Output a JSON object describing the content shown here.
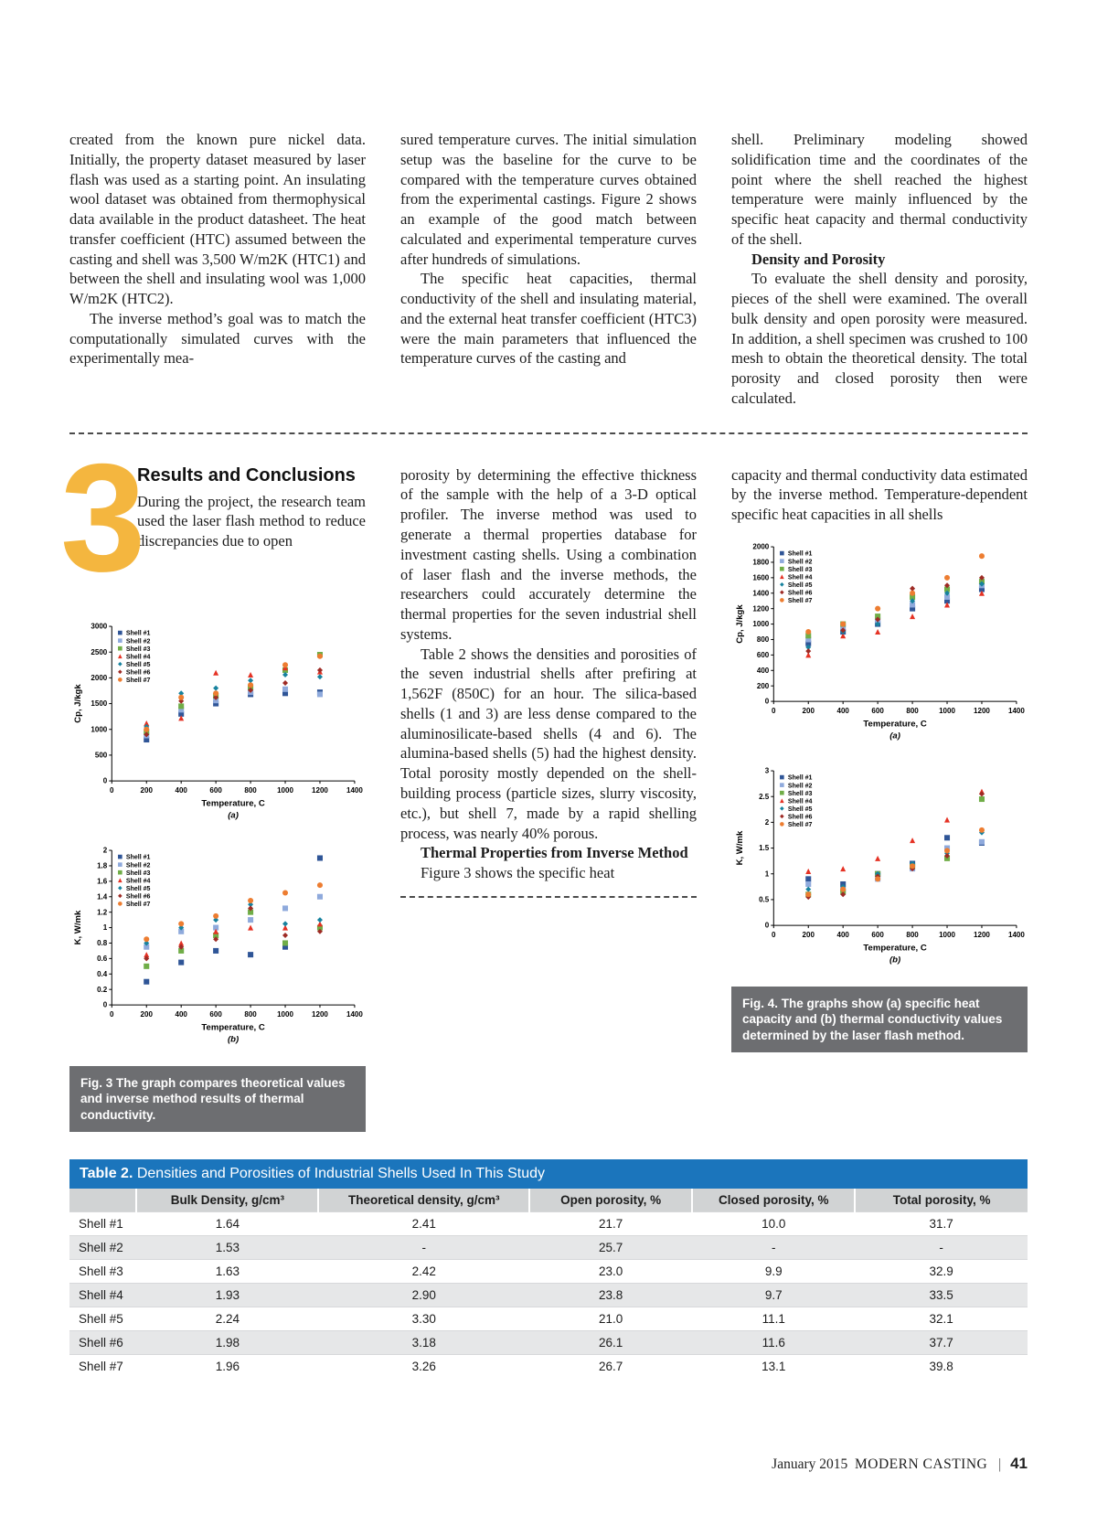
{
  "colors": {
    "table_header_bg": "#1b75bc",
    "caption_bg": "#6d6e71",
    "numeral_color": "#f4b63f"
  },
  "intro": {
    "col1_p1": "created from the known pure nickel data. Initially, the property dataset measured by laser flash was used as a starting point. An insulating wool dataset was obtained from thermophysical data available in the product datasheet. The heat transfer coefficient (HTC) assumed between the casting and shell was 3,500 W/m2K (HTC1) and between the shell and insulating wool was 1,000 W/m2K (HTC2).",
    "col1_p2": "The inverse method’s goal was to match the computationally simulated curves with the experimentally mea-",
    "col2_p1": "sured temperature curves. The initial simulation setup was the baseline for the curve to be compared with the temperature curves obtained from the experimental castings. Figure 2 shows an example of the good match between calculated and experimental temperature curves after hundreds of simulations.",
    "col2_p2": "The specific heat capacities, thermal conductivity of the shell and insulating material, and the external heat transfer coefficient (HTC3) were the main parameters that influenced the temperature curves of the casting and",
    "col3_p1": "shell. Preliminary modeling showed solidification time and the coordinates of the point where the shell reached the highest temperature were mainly influenced by the specific heat capacity and thermal conductivity of the shell.",
    "col3_head": "Density and Porosity",
    "col3_p2": "To evaluate the shell density and porosity, pieces of the shell were examined. The overall bulk density and open porosity were measured. In addition, a shell specimen was crushed to 100 mesh to obtain the theoretical density. The total porosity and closed porosity then were calculated."
  },
  "results": {
    "numeral": "3",
    "heading": "Results and Conclusions",
    "colA_p1": "During the project, the research team used the laser flash method to reduce discrepancies due to open",
    "colB_p1": "porosity by determining the effective thickness of the sample with the help of a 3-D optical profiler. The inverse method was used to generate a thermal properties database for investment casting shells. Using a combination of laser flash and the inverse methods, the researchers could accurately determine the thermal properties for the seven industrial shell systems.",
    "colB_p2": "Table 2 shows the densities and porosities of the seven industrial shells after prefiring at 1,562F (850C) for an hour. The silica-based shells (1 and 3) are less dense compared to the aluminosilicate-based shells (4 and 6). The alumina-based shells (5) had the highest density. Total porosity mostly depended on the shell-building process (particle sizes, slurry viscosity, etc.), but shell 7, made by a rapid shelling process, was nearly 40% porous.",
    "colB_subhead": "Thermal Properties from Inverse Method",
    "colB_p3": "Figure 3 shows the specific heat",
    "colC_p1": "capacity and thermal conductivity data estimated by the inverse method. Temperature-dependent specific heat capacities in all shells"
  },
  "captions": {
    "fig3": "Fig. 3 The graph compares theoretical values and inverse method results of thermal conductivity.",
    "fig4": "Fig. 4. The graphs show (a) specific heat capacity and (b) thermal conductivity values determined by the laser flash method."
  },
  "table": {
    "title_prefix": "Table 2.",
    "title_rest": " Densities and Porosities of Industrial Shells Used In This Study",
    "headers": [
      "",
      "Bulk Density, g/cm³",
      "Theoretical density, g/cm³",
      "Open porosity, %",
      "Closed porosity, %",
      "Total porosity, %"
    ],
    "rows": [
      [
        "Shell #1",
        "1.64",
        "2.41",
        "21.7",
        "10.0",
        "31.7"
      ],
      [
        "Shell #2",
        "1.53",
        "-",
        "25.7",
        "-",
        "-"
      ],
      [
        "Shell #3",
        "1.63",
        "2.42",
        "23.0",
        "9.9",
        "32.9"
      ],
      [
        "Shell #4",
        "1.93",
        "2.90",
        "23.8",
        "9.7",
        "33.5"
      ],
      [
        "Shell #5",
        "2.24",
        "3.30",
        "21.0",
        "11.1",
        "32.1"
      ],
      [
        "Shell #6",
        "1.98",
        "3.18",
        "26.1",
        "11.6",
        "37.7"
      ],
      [
        "Shell #7",
        "1.96",
        "3.26",
        "26.7",
        "13.1",
        "39.8"
      ]
    ]
  },
  "footer": {
    "issue": "January 2015",
    "magazine": "MODERN CASTING",
    "divider": "|",
    "page": "41"
  },
  "chart_data": [
    {
      "id": "fig3a",
      "type": "scatter",
      "xlabel": "Temperature, C",
      "ylabel": "Cp, J/kgk",
      "sublabel": "(a)",
      "xlim": [
        0,
        1400
      ],
      "ylim": [
        0,
        3000
      ],
      "xtick": 200,
      "ytick": 500,
      "grid": false,
      "legend_position": "top-left",
      "x": [
        200,
        400,
        600,
        800,
        1000,
        1200
      ],
      "series": [
        {
          "name": "Shell #1",
          "color": "#2f5597",
          "marker": "square",
          "values": [
            800,
            1300,
            1500,
            1680,
            1700,
            1720
          ]
        },
        {
          "name": "Shell #2",
          "color": "#8faadc",
          "marker": "square",
          "values": [
            880,
            1380,
            1560,
            1720,
            1780,
            1680
          ]
        },
        {
          "name": "Shell #3",
          "color": "#70ad47",
          "marker": "square",
          "values": [
            950,
            1450,
            1650,
            1820,
            2150,
            2450
          ]
        },
        {
          "name": "Shell #4",
          "color": "#e53224",
          "marker": "triangle",
          "values": [
            1120,
            1220,
            2100,
            2060,
            2200,
            2120
          ]
        },
        {
          "name": "Shell #5",
          "color": "#17829e",
          "marker": "diamond",
          "values": [
            1050,
            1700,
            1800,
            1950,
            2060,
            2020
          ]
        },
        {
          "name": "Shell #6",
          "color": "#9e2b25",
          "marker": "diamond",
          "values": [
            900,
            1550,
            1620,
            1760,
            1900,
            2150
          ]
        },
        {
          "name": "Shell #7",
          "color": "#ed7d31",
          "marker": "circle",
          "values": [
            1000,
            1620,
            1700,
            1860,
            2250,
            2420
          ]
        }
      ]
    },
    {
      "id": "fig3b",
      "type": "scatter",
      "xlabel": "Temperature, C",
      "ylabel": "K, W/mk",
      "sublabel": "(b)",
      "xlim": [
        0,
        1400
      ],
      "ylim": [
        0,
        2
      ],
      "xtick": 200,
      "ytick": 0.2,
      "grid": false,
      "legend_position": "top-left",
      "x": [
        200,
        400,
        600,
        800,
        1000,
        1200
      ],
      "series": [
        {
          "name": "Shell #1",
          "color": "#2f5597",
          "marker": "square",
          "values": [
            0.3,
            0.55,
            0.7,
            0.65,
            0.75,
            1.9
          ]
        },
        {
          "name": "Shell #2",
          "color": "#8faadc",
          "marker": "square",
          "values": [
            0.75,
            0.95,
            1.0,
            1.1,
            1.25,
            1.4
          ]
        },
        {
          "name": "Shell #3",
          "color": "#70ad47",
          "marker": "square",
          "values": [
            0.5,
            0.7,
            0.9,
            1.2,
            0.8,
            1.0
          ]
        },
        {
          "name": "Shell #4",
          "color": "#e53224",
          "marker": "triangle",
          "values": [
            0.65,
            0.8,
            0.95,
            1.0,
            1.0,
            1.05
          ]
        },
        {
          "name": "Shell #5",
          "color": "#17829e",
          "marker": "diamond",
          "values": [
            0.8,
            1.0,
            1.1,
            1.3,
            1.05,
            1.1
          ]
        },
        {
          "name": "Shell #6",
          "color": "#9e2b25",
          "marker": "diamond",
          "values": [
            0.6,
            0.75,
            0.85,
            1.25,
            0.9,
            0.95
          ]
        },
        {
          "name": "Shell #7",
          "color": "#ed7d31",
          "marker": "circle",
          "values": [
            0.85,
            1.05,
            1.15,
            1.35,
            1.45,
            1.55
          ]
        }
      ]
    },
    {
      "id": "fig4a",
      "type": "scatter",
      "xlabel": "Temperature, C",
      "ylabel": "Cp, J/kgk",
      "sublabel": "(a)",
      "xlim": [
        0,
        1400
      ],
      "ylim": [
        0,
        2000
      ],
      "xtick": 200,
      "ytick": 200,
      "grid": false,
      "legend_position": "top-left",
      "x": [
        200,
        400,
        600,
        800,
        1000,
        1200
      ],
      "series": [
        {
          "name": "Shell #1",
          "color": "#2f5597",
          "marker": "square",
          "values": [
            750,
            900,
            1000,
            1200,
            1300,
            1450
          ]
        },
        {
          "name": "Shell #2",
          "color": "#8faadc",
          "marker": "square",
          "values": [
            800,
            950,
            1050,
            1250,
            1350,
            1500
          ]
        },
        {
          "name": "Shell #3",
          "color": "#70ad47",
          "marker": "square",
          "values": [
            850,
            1000,
            1100,
            1350,
            1450,
            1550
          ]
        },
        {
          "name": "Shell #4",
          "color": "#e53224",
          "marker": "triangle",
          "values": [
            600,
            850,
            900,
            1100,
            1250,
            1400
          ]
        },
        {
          "name": "Shell #5",
          "color": "#17829e",
          "marker": "diamond",
          "values": [
            700,
            900,
            1000,
            1300,
            1400,
            1520
          ]
        },
        {
          "name": "Shell #6",
          "color": "#9e2b25",
          "marker": "diamond",
          "values": [
            650,
            920,
            1060,
            1460,
            1500,
            1600
          ]
        },
        {
          "name": "Shell #7",
          "color": "#ed7d31",
          "marker": "circle",
          "values": [
            900,
            1000,
            1200,
            1400,
            1600,
            1880
          ]
        }
      ]
    },
    {
      "id": "fig4b",
      "type": "scatter",
      "xlabel": "Temperature, C",
      "ylabel": "K, W/mk",
      "sublabel": "(b)",
      "xlim": [
        0,
        1400
      ],
      "ylim": [
        0,
        3
      ],
      "xtick": 200,
      "ytick": 0.5,
      "grid": false,
      "legend_position": "top-left",
      "x": [
        200,
        400,
        600,
        800,
        1000,
        1200
      ],
      "series": [
        {
          "name": "Shell #1",
          "color": "#2f5597",
          "marker": "square",
          "values": [
            0.9,
            0.8,
            1.0,
            1.2,
            1.7,
            1.6
          ]
        },
        {
          "name": "Shell #2",
          "color": "#8faadc",
          "marker": "square",
          "values": [
            0.8,
            0.7,
            0.9,
            1.1,
            1.5,
            1.62
          ]
        },
        {
          "name": "Shell #3",
          "color": "#70ad47",
          "marker": "square",
          "values": [
            0.6,
            0.65,
            1.0,
            1.15,
            1.3,
            2.45
          ]
        },
        {
          "name": "Shell #4",
          "color": "#e53224",
          "marker": "triangle",
          "values": [
            1.05,
            1.1,
            1.3,
            1.65,
            2.05,
            2.6
          ]
        },
        {
          "name": "Shell #5",
          "color": "#17829e",
          "marker": "diamond",
          "values": [
            0.7,
            0.75,
            1.0,
            1.2,
            1.4,
            1.8
          ]
        },
        {
          "name": "Shell #6",
          "color": "#9e2b25",
          "marker": "diamond",
          "values": [
            0.55,
            0.6,
            0.95,
            1.1,
            1.35,
            2.55
          ]
        },
        {
          "name": "Shell #7",
          "color": "#ed7d31",
          "marker": "circle",
          "values": [
            0.6,
            0.7,
            0.9,
            1.15,
            1.45,
            1.85
          ]
        }
      ]
    }
  ]
}
